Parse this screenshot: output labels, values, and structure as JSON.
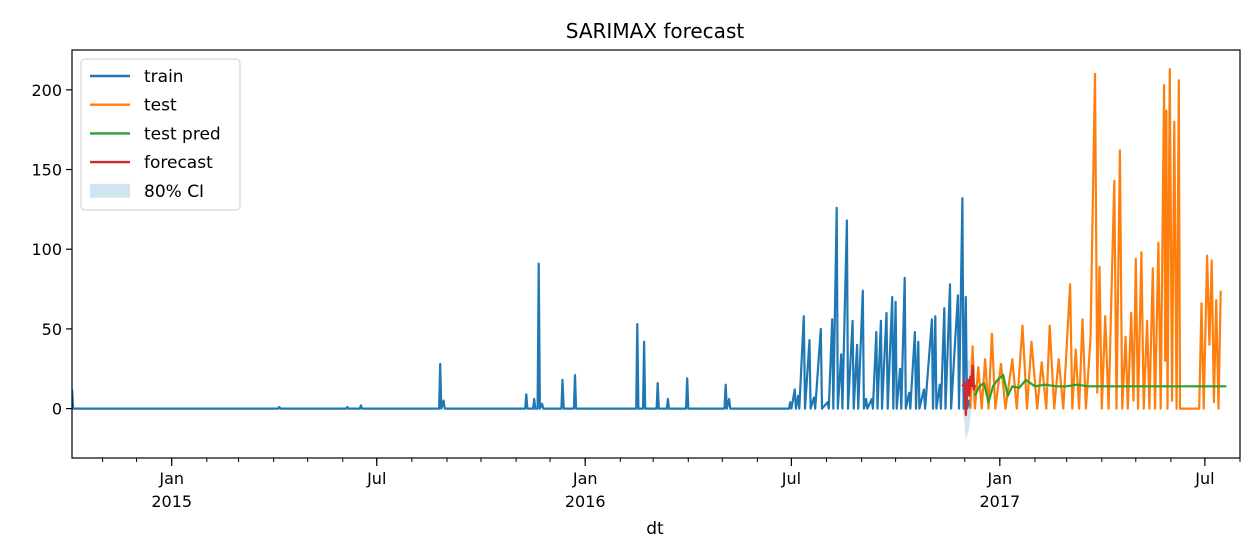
{
  "chart_data": {
    "type": "line",
    "title": "SARIMAX forecast",
    "xlabel": "dt",
    "ylabel": "",
    "ylim": [
      -31,
      225
    ],
    "xlim": [
      "2014-10-05",
      "2017-08-01"
    ],
    "yticks": [
      0,
      50,
      100,
      150,
      200
    ],
    "xticks": [
      {
        "date": "2015-01-01",
        "label": "Jan",
        "sub": "2015"
      },
      {
        "date": "2015-07-01",
        "label": "Jul",
        "sub": ""
      },
      {
        "date": "2016-01-01",
        "label": "Jan",
        "sub": "2016"
      },
      {
        "date": "2016-07-01",
        "label": "Jul",
        "sub": ""
      },
      {
        "date": "2017-01-01",
        "label": "Jan",
        "sub": "2017"
      },
      {
        "date": "2017-07-01",
        "label": "Jul",
        "sub": ""
      }
    ],
    "legend_position": "top-left",
    "series": [
      {
        "name": "train",
        "color": "#1f77b4",
        "points": [
          [
            "2014-10-05",
            12
          ],
          [
            "2014-10-06",
            0
          ],
          [
            "2015-04-05",
            0
          ],
          [
            "2015-04-06",
            1
          ],
          [
            "2015-04-07",
            0
          ],
          [
            "2015-06-04",
            0
          ],
          [
            "2015-06-05",
            1
          ],
          [
            "2015-06-06",
            0
          ],
          [
            "2015-06-16",
            0
          ],
          [
            "2015-06-17",
            2
          ],
          [
            "2015-06-18",
            0
          ],
          [
            "2015-08-25",
            0
          ],
          [
            "2015-08-26",
            28
          ],
          [
            "2015-08-27",
            0
          ],
          [
            "2015-08-29",
            5
          ],
          [
            "2015-08-30",
            0
          ],
          [
            "2015-11-09",
            0
          ],
          [
            "2015-11-10",
            9
          ],
          [
            "2015-11-11",
            0
          ],
          [
            "2015-11-16",
            0
          ],
          [
            "2015-11-17",
            6
          ],
          [
            "2015-11-18",
            0
          ],
          [
            "2015-11-20",
            0
          ],
          [
            "2015-11-21",
            91
          ],
          [
            "2015-11-22",
            0
          ],
          [
            "2015-11-24",
            3
          ],
          [
            "2015-11-25",
            0
          ],
          [
            "2015-12-11",
            0
          ],
          [
            "2015-12-12",
            18
          ],
          [
            "2015-12-13",
            0
          ],
          [
            "2015-12-22",
            0
          ],
          [
            "2015-12-23",
            21
          ],
          [
            "2015-12-24",
            0
          ],
          [
            "2016-02-15",
            0
          ],
          [
            "2016-02-16",
            53
          ],
          [
            "2016-02-17",
            0
          ],
          [
            "2016-02-21",
            0
          ],
          [
            "2016-02-22",
            42
          ],
          [
            "2016-02-23",
            0
          ],
          [
            "2016-03-04",
            0
          ],
          [
            "2016-03-05",
            16
          ],
          [
            "2016-03-06",
            0
          ],
          [
            "2016-03-13",
            0
          ],
          [
            "2016-03-14",
            6
          ],
          [
            "2016-03-15",
            0
          ],
          [
            "2016-03-30",
            0
          ],
          [
            "2016-03-31",
            19
          ],
          [
            "2016-04-01",
            0
          ],
          [
            "2016-05-03",
            0
          ],
          [
            "2016-05-04",
            15
          ],
          [
            "2016-05-05",
            0
          ],
          [
            "2016-05-07",
            6
          ],
          [
            "2016-05-08",
            0
          ],
          [
            "2016-06-29",
            0
          ],
          [
            "2016-06-30",
            4
          ],
          [
            "2016-07-01",
            0
          ],
          [
            "2016-07-04",
            12
          ],
          [
            "2016-07-05",
            0
          ],
          [
            "2016-07-07",
            8
          ],
          [
            "2016-07-08",
            0
          ],
          [
            "2016-07-12",
            58
          ],
          [
            "2016-07-13",
            0
          ],
          [
            "2016-07-17",
            43
          ],
          [
            "2016-07-18",
            0
          ],
          [
            "2016-07-21",
            7
          ],
          [
            "2016-07-22",
            0
          ],
          [
            "2016-07-27",
            50
          ],
          [
            "2016-07-28",
            0
          ],
          [
            "2016-08-02",
            4
          ],
          [
            "2016-08-03",
            0
          ],
          [
            "2016-08-06",
            56
          ],
          [
            "2016-08-07",
            0
          ],
          [
            "2016-08-10",
            126
          ],
          [
            "2016-08-11",
            0
          ],
          [
            "2016-08-14",
            34
          ],
          [
            "2016-08-15",
            0
          ],
          [
            "2016-08-19",
            118
          ],
          [
            "2016-08-20",
            0
          ],
          [
            "2016-08-24",
            55
          ],
          [
            "2016-08-25",
            0
          ],
          [
            "2016-08-28",
            40
          ],
          [
            "2016-08-29",
            0
          ],
          [
            "2016-09-02",
            74
          ],
          [
            "2016-09-03",
            0
          ],
          [
            "2016-09-05",
            6
          ],
          [
            "2016-09-06",
            0
          ],
          [
            "2016-09-10",
            6
          ],
          [
            "2016-09-11",
            0
          ],
          [
            "2016-09-14",
            48
          ],
          [
            "2016-09-15",
            0
          ],
          [
            "2016-09-18",
            55
          ],
          [
            "2016-09-19",
            0
          ],
          [
            "2016-09-23",
            60
          ],
          [
            "2016-09-24",
            0
          ],
          [
            "2016-09-28",
            70
          ],
          [
            "2016-09-29",
            0
          ],
          [
            "2016-10-01",
            67
          ],
          [
            "2016-10-02",
            0
          ],
          [
            "2016-10-05",
            25
          ],
          [
            "2016-10-06",
            0
          ],
          [
            "2016-10-09",
            82
          ],
          [
            "2016-10-10",
            0
          ],
          [
            "2016-10-13",
            10
          ],
          [
            "2016-10-14",
            0
          ],
          [
            "2016-10-18",
            48
          ],
          [
            "2016-10-19",
            0
          ],
          [
            "2016-10-21",
            42
          ],
          [
            "2016-10-22",
            0
          ],
          [
            "2016-10-26",
            12
          ],
          [
            "2016-10-27",
            0
          ],
          [
            "2016-11-02",
            56
          ],
          [
            "2016-11-03",
            0
          ],
          [
            "2016-11-05",
            58
          ],
          [
            "2016-11-06",
            0
          ],
          [
            "2016-11-09",
            15
          ],
          [
            "2016-11-10",
            0
          ],
          [
            "2016-11-13",
            63
          ],
          [
            "2016-11-14",
            0
          ],
          [
            "2016-11-18",
            78
          ],
          [
            "2016-11-19",
            0
          ],
          [
            "2016-11-25",
            71
          ],
          [
            "2016-11-26",
            0
          ],
          [
            "2016-11-29",
            132
          ],
          [
            "2016-11-30",
            0
          ],
          [
            "2016-12-02",
            70
          ],
          [
            "2016-12-03",
            0
          ],
          [
            "2016-12-05",
            5
          ],
          [
            "2016-12-06",
            0
          ]
        ]
      },
      {
        "name": "test",
        "color": "#ff7f0e",
        "points": [
          [
            "2016-12-06",
            0
          ],
          [
            "2016-12-08",
            39
          ],
          [
            "2016-12-10",
            0
          ],
          [
            "2016-12-13",
            26
          ],
          [
            "2016-12-16",
            0
          ],
          [
            "2016-12-19",
            31
          ],
          [
            "2016-12-22",
            0
          ],
          [
            "2016-12-25",
            47
          ],
          [
            "2016-12-28",
            0
          ],
          [
            "2017-01-02",
            28
          ],
          [
            "2017-01-06",
            0
          ],
          [
            "2017-01-12",
            31
          ],
          [
            "2017-01-16",
            0
          ],
          [
            "2017-01-21",
            52
          ],
          [
            "2017-01-25",
            0
          ],
          [
            "2017-01-29",
            42
          ],
          [
            "2017-02-03",
            0
          ],
          [
            "2017-02-07",
            29
          ],
          [
            "2017-02-11",
            0
          ],
          [
            "2017-02-14",
            52
          ],
          [
            "2017-02-18",
            0
          ],
          [
            "2017-02-22",
            31
          ],
          [
            "2017-02-26",
            0
          ],
          [
            "2017-03-04",
            78
          ],
          [
            "2017-03-06",
            0
          ],
          [
            "2017-03-09",
            37
          ],
          [
            "2017-03-12",
            0
          ],
          [
            "2017-03-15",
            56
          ],
          [
            "2017-03-18",
            0
          ],
          [
            "2017-03-22",
            44
          ],
          [
            "2017-03-26",
            210
          ],
          [
            "2017-03-28",
            10
          ],
          [
            "2017-03-30",
            89
          ],
          [
            "2017-04-01",
            0
          ],
          [
            "2017-04-04",
            58
          ],
          [
            "2017-04-07",
            0
          ],
          [
            "2017-04-12",
            143
          ],
          [
            "2017-04-14",
            0
          ],
          [
            "2017-04-17",
            162
          ],
          [
            "2017-04-19",
            0
          ],
          [
            "2017-04-22",
            45
          ],
          [
            "2017-04-24",
            0
          ],
          [
            "2017-04-27",
            60
          ],
          [
            "2017-04-29",
            5
          ],
          [
            "2017-05-01",
            94
          ],
          [
            "2017-05-03",
            0
          ],
          [
            "2017-05-06",
            98
          ],
          [
            "2017-05-08",
            0
          ],
          [
            "2017-05-11",
            55
          ],
          [
            "2017-05-13",
            0
          ],
          [
            "2017-05-16",
            88
          ],
          [
            "2017-05-18",
            0
          ],
          [
            "2017-05-21",
            104
          ],
          [
            "2017-05-23",
            0
          ],
          [
            "2017-05-26",
            203
          ],
          [
            "2017-05-27",
            30
          ],
          [
            "2017-05-28",
            187
          ],
          [
            "2017-05-29",
            0
          ],
          [
            "2017-05-31",
            213
          ],
          [
            "2017-06-02",
            5
          ],
          [
            "2017-06-04",
            180
          ],
          [
            "2017-06-06",
            0
          ],
          [
            "2017-06-08",
            206
          ],
          [
            "2017-06-09",
            0
          ],
          [
            "2017-06-12",
            0
          ],
          [
            "2017-06-26",
            0
          ],
          [
            "2017-06-28",
            66
          ],
          [
            "2017-06-30",
            0
          ],
          [
            "2017-07-03",
            96
          ],
          [
            "2017-07-05",
            40
          ],
          [
            "2017-07-07",
            93
          ],
          [
            "2017-07-09",
            4
          ],
          [
            "2017-07-11",
            68
          ],
          [
            "2017-07-13",
            0
          ],
          [
            "2017-07-15",
            74
          ]
        ]
      },
      {
        "name": "test pred",
        "color": "#2ca02c",
        "points": [
          [
            "2016-12-10",
            8
          ],
          [
            "2016-12-14",
            14
          ],
          [
            "2016-12-18",
            16
          ],
          [
            "2016-12-22",
            4
          ],
          [
            "2016-12-26",
            14
          ],
          [
            "2016-12-30",
            18
          ],
          [
            "2017-01-04",
            21
          ],
          [
            "2017-01-08",
            8
          ],
          [
            "2017-01-12",
            14
          ],
          [
            "2017-01-18",
            13
          ],
          [
            "2017-01-24",
            18
          ],
          [
            "2017-02-01",
            14
          ],
          [
            "2017-02-10",
            15
          ],
          [
            "2017-02-20",
            14
          ],
          [
            "2017-03-01",
            14
          ],
          [
            "2017-03-10",
            15
          ],
          [
            "2017-03-20",
            14
          ],
          [
            "2017-04-01",
            14
          ],
          [
            "2017-07-20",
            14
          ]
        ]
      },
      {
        "name": "forecast",
        "color": "#d62728",
        "points": [
          [
            "2016-11-29",
            14
          ],
          [
            "2016-12-01",
            17
          ],
          [
            "2016-12-02",
            -4
          ],
          [
            "2016-12-03",
            12
          ],
          [
            "2016-12-04",
            18
          ],
          [
            "2016-12-05",
            8
          ],
          [
            "2016-12-06",
            20
          ],
          [
            "2016-12-07",
            14
          ],
          [
            "2016-12-08",
            27
          ],
          [
            "2016-12-09",
            12
          ],
          [
            "2016-12-10",
            15
          ]
        ]
      }
    ],
    "ci": {
      "name": "80% CI",
      "color": "#1f77b4",
      "opacity": 0.2,
      "upper": [
        [
          "2016-11-29",
          22
        ],
        [
          "2016-12-02",
          32
        ],
        [
          "2016-12-05",
          30
        ],
        [
          "2016-12-08",
          36
        ],
        [
          "2016-12-10",
          30
        ]
      ],
      "lower": [
        [
          "2016-11-29",
          5
        ],
        [
          "2016-12-02",
          -20
        ],
        [
          "2016-12-05",
          -12
        ],
        [
          "2016-12-08",
          5
        ],
        [
          "2016-12-10",
          2
        ]
      ]
    }
  }
}
